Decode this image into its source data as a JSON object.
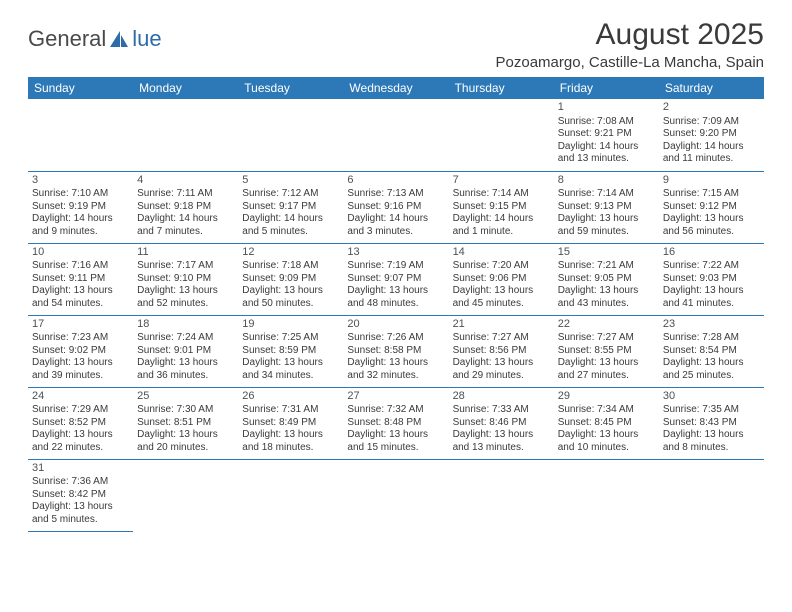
{
  "logo": {
    "part1": "General",
    "part2": "lue"
  },
  "title": "August 2025",
  "subtitle": "Pozoamargo, Castille-La Mancha, Spain",
  "colors": {
    "header_bg": "#2d79b8",
    "header_text": "#ffffff",
    "cell_border": "#2d79b8",
    "text": "#3a3a3a",
    "logo_gray": "#4a4a4a",
    "logo_blue": "#2d6ca8"
  },
  "weekdays": [
    "Sunday",
    "Monday",
    "Tuesday",
    "Wednesday",
    "Thursday",
    "Friday",
    "Saturday"
  ],
  "first_weekday_index": 5,
  "days": [
    {
      "n": 1,
      "sr": "7:08 AM",
      "ss": "9:21 PM",
      "dl": "14 hours and 13 minutes."
    },
    {
      "n": 2,
      "sr": "7:09 AM",
      "ss": "9:20 PM",
      "dl": "14 hours and 11 minutes."
    },
    {
      "n": 3,
      "sr": "7:10 AM",
      "ss": "9:19 PM",
      "dl": "14 hours and 9 minutes."
    },
    {
      "n": 4,
      "sr": "7:11 AM",
      "ss": "9:18 PM",
      "dl": "14 hours and 7 minutes."
    },
    {
      "n": 5,
      "sr": "7:12 AM",
      "ss": "9:17 PM",
      "dl": "14 hours and 5 minutes."
    },
    {
      "n": 6,
      "sr": "7:13 AM",
      "ss": "9:16 PM",
      "dl": "14 hours and 3 minutes."
    },
    {
      "n": 7,
      "sr": "7:14 AM",
      "ss": "9:15 PM",
      "dl": "14 hours and 1 minute."
    },
    {
      "n": 8,
      "sr": "7:14 AM",
      "ss": "9:13 PM",
      "dl": "13 hours and 59 minutes."
    },
    {
      "n": 9,
      "sr": "7:15 AM",
      "ss": "9:12 PM",
      "dl": "13 hours and 56 minutes."
    },
    {
      "n": 10,
      "sr": "7:16 AM",
      "ss": "9:11 PM",
      "dl": "13 hours and 54 minutes."
    },
    {
      "n": 11,
      "sr": "7:17 AM",
      "ss": "9:10 PM",
      "dl": "13 hours and 52 minutes."
    },
    {
      "n": 12,
      "sr": "7:18 AM",
      "ss": "9:09 PM",
      "dl": "13 hours and 50 minutes."
    },
    {
      "n": 13,
      "sr": "7:19 AM",
      "ss": "9:07 PM",
      "dl": "13 hours and 48 minutes."
    },
    {
      "n": 14,
      "sr": "7:20 AM",
      "ss": "9:06 PM",
      "dl": "13 hours and 45 minutes."
    },
    {
      "n": 15,
      "sr": "7:21 AM",
      "ss": "9:05 PM",
      "dl": "13 hours and 43 minutes."
    },
    {
      "n": 16,
      "sr": "7:22 AM",
      "ss": "9:03 PM",
      "dl": "13 hours and 41 minutes."
    },
    {
      "n": 17,
      "sr": "7:23 AM",
      "ss": "9:02 PM",
      "dl": "13 hours and 39 minutes."
    },
    {
      "n": 18,
      "sr": "7:24 AM",
      "ss": "9:01 PM",
      "dl": "13 hours and 36 minutes."
    },
    {
      "n": 19,
      "sr": "7:25 AM",
      "ss": "8:59 PM",
      "dl": "13 hours and 34 minutes."
    },
    {
      "n": 20,
      "sr": "7:26 AM",
      "ss": "8:58 PM",
      "dl": "13 hours and 32 minutes."
    },
    {
      "n": 21,
      "sr": "7:27 AM",
      "ss": "8:56 PM",
      "dl": "13 hours and 29 minutes."
    },
    {
      "n": 22,
      "sr": "7:27 AM",
      "ss": "8:55 PM",
      "dl": "13 hours and 27 minutes."
    },
    {
      "n": 23,
      "sr": "7:28 AM",
      "ss": "8:54 PM",
      "dl": "13 hours and 25 minutes."
    },
    {
      "n": 24,
      "sr": "7:29 AM",
      "ss": "8:52 PM",
      "dl": "13 hours and 22 minutes."
    },
    {
      "n": 25,
      "sr": "7:30 AM",
      "ss": "8:51 PM",
      "dl": "13 hours and 20 minutes."
    },
    {
      "n": 26,
      "sr": "7:31 AM",
      "ss": "8:49 PM",
      "dl": "13 hours and 18 minutes."
    },
    {
      "n": 27,
      "sr": "7:32 AM",
      "ss": "8:48 PM",
      "dl": "13 hours and 15 minutes."
    },
    {
      "n": 28,
      "sr": "7:33 AM",
      "ss": "8:46 PM",
      "dl": "13 hours and 13 minutes."
    },
    {
      "n": 29,
      "sr": "7:34 AM",
      "ss": "8:45 PM",
      "dl": "13 hours and 10 minutes."
    },
    {
      "n": 30,
      "sr": "7:35 AM",
      "ss": "8:43 PM",
      "dl": "13 hours and 8 minutes."
    },
    {
      "n": 31,
      "sr": "7:36 AM",
      "ss": "8:42 PM",
      "dl": "13 hours and 5 minutes."
    }
  ],
  "labels": {
    "sunrise": "Sunrise:",
    "sunset": "Sunset:",
    "daylight": "Daylight:"
  }
}
